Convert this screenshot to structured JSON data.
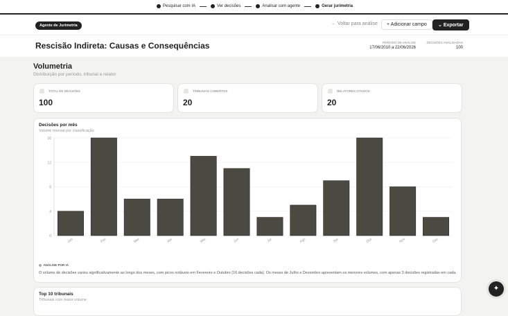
{
  "stepper": {
    "steps": [
      "Pesquisar com IA",
      "Ver decisões",
      "Analisar com agente",
      "Gerar jurimetria"
    ]
  },
  "header": {
    "badge": "Agente de Jurimetria",
    "back": "Voltar para análise",
    "add": "Adicionar campo",
    "export": "Exportar"
  },
  "page": {
    "title": "Rescisão Indireta: Causas e Consequências",
    "period_label": "PERÍODO DE ANÁLISE",
    "period": "17/06/2010 a 22/06/2026",
    "count_label": "DECISÕES ANALISADAS",
    "count": "100"
  },
  "section": {
    "title": "Volumetria",
    "subtitle": "Distribuição por período, tribunal e relator"
  },
  "stats": [
    {
      "label": "TOTAL DE DECISÕES",
      "value": "100"
    },
    {
      "label": "TRIBUNAIS COBERTOS",
      "value": "20"
    },
    {
      "label": "RELATORES CITADOS",
      "value": "20"
    }
  ],
  "chart_data": {
    "type": "bar",
    "title": "Decisões por mês",
    "subtitle": "Volume mensal por classificação",
    "categories": [
      "Jan",
      "Fev",
      "Mar",
      "Abr",
      "Mai",
      "Jun",
      "Jul",
      "Ago",
      "Set",
      "Out",
      "Nov",
      "Dez"
    ],
    "values": [
      4,
      16,
      6,
      6,
      13,
      11,
      3,
      5,
      9,
      16,
      8,
      3
    ],
    "color": "#4a4a43",
    "ylim": [
      0,
      16
    ],
    "yticks": [
      0,
      4,
      8,
      12,
      16
    ],
    "grid": true
  },
  "analysis": {
    "label": "ANÁLISE POR IA",
    "text": "O volume de decisões variou significativamente ao longo dos meses, com picos notáveis em Fevereiro e Outubro (16 decisões cada). Os meses de Julho e Dezembro apresentam os menores volumes, com apenas 3 decisões registradas em cada."
  },
  "next_section": {
    "title": "Top 10 tribunais",
    "subtitle": "Tribunais com maior volume"
  }
}
